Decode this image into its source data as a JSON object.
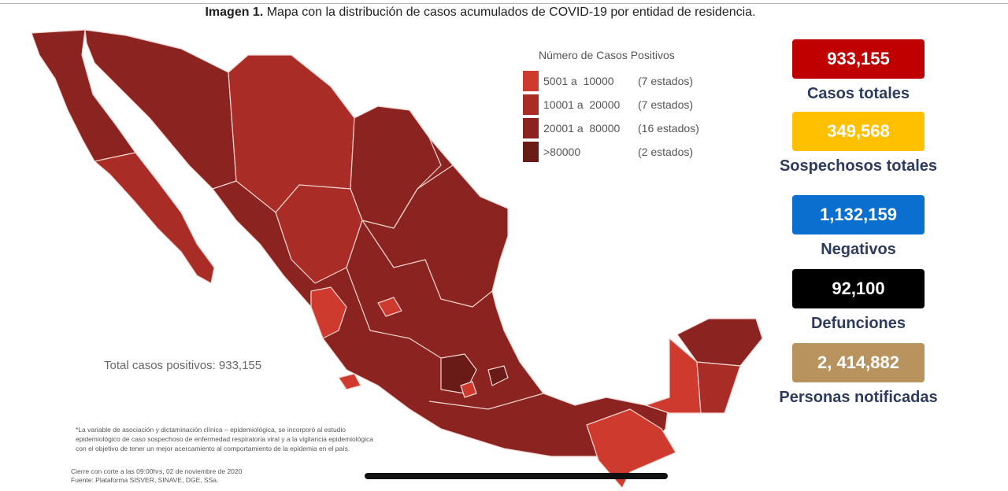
{
  "title": {
    "bold": "Imagen 1.",
    "text": " Mapa con la distribución de casos acumulados de COVID-19 por entidad de residencia."
  },
  "legend": {
    "title": "Número de Casos Positivos",
    "items": [
      {
        "range": "5001 a  10000",
        "count": "(7 estados)",
        "color": "#cf3a2f"
      },
      {
        "range": "10001 a  20000",
        "count": "(7 estados)",
        "color": "#a92d26"
      },
      {
        "range": "20001 a  80000",
        "count": "(16 estados)",
        "color": "#8b2420"
      },
      {
        "range": ">80000",
        "count": "(2 estados)",
        "color": "#6a1a17"
      }
    ]
  },
  "total_label": "Total casos positivos: 933,155",
  "stats": [
    {
      "value": "933,155",
      "label": "Casos totales",
      "color": "#c00000"
    },
    {
      "value": "349,568",
      "label": "Sospechosos totales",
      "color": "#ffc000"
    },
    {
      "value": "1,132,159",
      "label": "Negativos",
      "color": "#0b6fd0"
    },
    {
      "value": "92,100",
      "label": "Defunciones",
      "color": "#000000"
    },
    {
      "value": "2, 414,882",
      "label": "Personas notificadas",
      "color": "#b8935e"
    }
  ],
  "notes": [
    "*La variable de asociación y dictaminación clínica – epidemiológica, se incorporó al estudio",
    "epidemiológico de caso sospechoso de enfermedad respiratoria viral y a la vigilancia epidemiológica",
    "con el objetivo de tener un mejor acercamiento al comportamiento de la epidemia en el país."
  ],
  "footer": [
    "Cierre con corte a las 09:00hrs, 02 de noviembre de 2020",
    "Fuente: Plataforma SISVER, SINAVE, DGE, SSa."
  ]
}
